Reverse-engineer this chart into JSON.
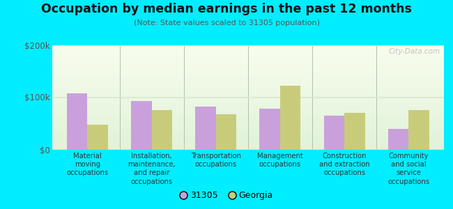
{
  "title": "Occupation by median earnings in the past 12 months",
  "subtitle": "(Note: State values scaled to 31305 population)",
  "categories": [
    "Material\nmoving\noccupations",
    "Installation,\nmaintenance,\nand repair\noccupations",
    "Transportation\noccupations",
    "Management\noccupations",
    "Construction\nand extraction\noccupations",
    "Community\nand social\nservice\noccupations"
  ],
  "values_31305": [
    108000,
    93000,
    82000,
    78000,
    65000,
    40000
  ],
  "values_georgia": [
    48000,
    75000,
    68000,
    122000,
    70000,
    75000
  ],
  "color_31305": "#c9a0dc",
  "color_georgia": "#c8cc7a",
  "ylim": [
    0,
    200000
  ],
  "yticks": [
    0,
    100000,
    200000
  ],
  "ytick_labels": [
    "$0",
    "$100k",
    "$200k"
  ],
  "background_color": "#00eeff",
  "bar_width": 0.32,
  "legend_31305": "31305",
  "legend_georgia": "Georgia",
  "watermark": "City-Data.com",
  "separator_color": "#b0c0b0",
  "grid_color": "#d8e8d0"
}
